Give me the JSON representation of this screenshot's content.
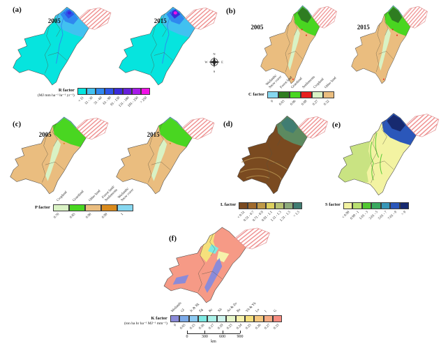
{
  "figure": {
    "compass": {
      "n": "N",
      "e": "E",
      "s": "S",
      "w": "W"
    },
    "scale_bar": {
      "ticks": [
        "0",
        "300",
        "600",
        "900"
      ],
      "unit": "km"
    },
    "panels": {
      "a": {
        "label": "(a)",
        "years": [
          "2005",
          "2015"
        ],
        "legend": {
          "title": "R factor",
          "units": "(MJ mm ha⁻¹ hr⁻¹ yr⁻¹)",
          "classes": [
            {
              "label": "< 11",
              "color": "#06e4de"
            },
            {
              "label": "11 - 30",
              "color": "#41c1f0"
            },
            {
              "label": "31 - 60",
              "color": "#2f88ef"
            },
            {
              "label": "61 - 90",
              "color": "#2d55e9"
            },
            {
              "label": "91 - 130",
              "color": "#3a2adb"
            },
            {
              "label": "131 - 180",
              "color": "#671fdb"
            },
            {
              "label": "181 - 250",
              "color": "#a81aea"
            },
            {
              "label": "> 250",
              "color": "#f110e6"
            }
          ]
        },
        "map": {
          "low": "#06e4de",
          "mid": "#41c1f0",
          "high": "#2f88ef",
          "higher": "#2d55e9",
          "peak2005": "#3a2adb",
          "peak2015": "#f110e6"
        }
      },
      "b": {
        "label": "(b)",
        "years": [
          "2005",
          "2015"
        ],
        "legend": {
          "title": "C factor",
          "classes": [
            {
              "category": "Wetlands/\nSnow cover",
              "value": "0",
              "color": "#86d7f0"
            },
            {
              "category": "Forest land",
              "value": "0.03",
              "color": "#2f7d21"
            },
            {
              "category": "Grassland",
              "value": "0.06",
              "color": "#49d621"
            },
            {
              "category": "Settlements",
              "value": "0.08",
              "color": "#e81e1e"
            },
            {
              "category": "Cropland",
              "value": "0.27",
              "color": "#d9f2c4"
            },
            {
              "category": "Other land",
              "value": "0.32",
              "color": "#eabd7f"
            }
          ]
        },
        "map": {
          "base": "#eabd7f",
          "plain": "#d9f2c4",
          "grass": "#49d621",
          "forest": "#2f7d21",
          "water": "#86d7f0",
          "settlement": "#e81e1e"
        }
      },
      "c": {
        "label": "(c)",
        "years": [
          "2005",
          "2015"
        ],
        "legend": {
          "title": "P factor",
          "classes": [
            {
              "category": "Cropland",
              "value": "0.70",
              "color": "#d9f2c4"
            },
            {
              "category": "Grassland",
              "value": "0.85",
              "color": "#49d621"
            },
            {
              "category": "Other land",
              "value": "0.90",
              "color": "#eabd7f"
            },
            {
              "category": "Forest land/\nSettlements",
              "value": "0.99",
              "color": "#d98a1c"
            },
            {
              "category": "Wetlands/\nSnow cover",
              "value": "1",
              "color": "#86d7f0"
            }
          ]
        },
        "map": {
          "base": "#eabd7f",
          "plain": "#d9f2c4",
          "grass": "#49d621",
          "forest": "#d98a1c",
          "water": "#86d7f0"
        }
      },
      "d": {
        "label": "(d)",
        "legend": {
          "title": "L factor",
          "classes": [
            {
              "label": "< 0.51",
              "color": "#7a4a20"
            },
            {
              "label": "0.51 - 0.7",
              "color": "#a06a2c"
            },
            {
              "label": "0.71 - 0.9",
              "color": "#c09a48"
            },
            {
              "label": "0.91 - 1.1",
              "color": "#ddd05e"
            },
            {
              "label": "1.11 - 1.3",
              "color": "#b7c273"
            },
            {
              "label": "1.31 - 1.5",
              "color": "#8dab7b"
            },
            {
              "label": "> 1.5",
              "color": "#417d72"
            }
          ]
        },
        "map": {
          "base": "#7a4a20",
          "swirl": "#b08a4a",
          "north": "#5c8a60",
          "top": "#417d72"
        }
      },
      "e": {
        "label": "(e)",
        "legend": {
          "title": "S factor",
          "classes": [
            {
              "label": "< 0.99",
              "color": "#f3f3a2"
            },
            {
              "label": "0.99 - 1",
              "color": "#b9e070"
            },
            {
              "label": "1.01 - 3",
              "color": "#52c832"
            },
            {
              "label": "3.01 - 5",
              "color": "#3aaa60"
            },
            {
              "label": "5.01 - 7",
              "color": "#3897b8"
            },
            {
              "label": "7.01 - 9",
              "color": "#2b57ba"
            },
            {
              "label": "> 9",
              "color": "#172a70"
            }
          ]
        },
        "map": {
          "base": "#f3f3a2",
          "west": "#c9e382",
          "ridge": "#52c832",
          "high": "#2b57ba",
          "peak": "#172a70"
        }
      },
      "f": {
        "label": "(f)",
        "legend": {
          "title": "K factor",
          "units": "(ton ha hr ha⁻¹ MJ⁻¹ mm⁻¹)",
          "classes": [
            {
              "category": "Wetlands",
              "value": "0",
              "color": "#8b8bd9"
            },
            {
              "category": "Gl",
              "value": "0.05",
              "color": "#7caae9"
            },
            {
              "category": "Jc & Xk",
              "value": "0.15",
              "color": "#8ccaf2"
            },
            {
              "category": "Zg",
              "value": "0.16",
              "color": "#7de9e2"
            },
            {
              "category": "Rc",
              "value": "0.17",
              "color": "#a9f1e8"
            },
            {
              "category": "Xh",
              "value": "0.19",
              "color": "#cdf3ec"
            },
            {
              "category": "Ao & Zo",
              "value": "0.23",
              "color": "#e6f6c9"
            },
            {
              "category": "Be",
              "value": "0.24",
              "color": "#f6f2ab"
            },
            {
              "category": "Yh & Yk",
              "value": "0.25",
              "color": "#f6e07c"
            },
            {
              "category": "Lo",
              "value": "0.26",
              "color": "#f6c87e"
            },
            {
              "category": "I",
              "value": "0.27",
              "color": "#f6ab82"
            },
            {
              "category": "G",
              "value": "0.33",
              "color": "#f68c80"
            }
          ]
        },
        "map": {
          "base": "#f69a86",
          "valley": "#8b8bd9",
          "sand": "#f6e07c",
          "cyan": "#7de9e2",
          "pale": "#f6f2ab"
        }
      }
    }
  }
}
